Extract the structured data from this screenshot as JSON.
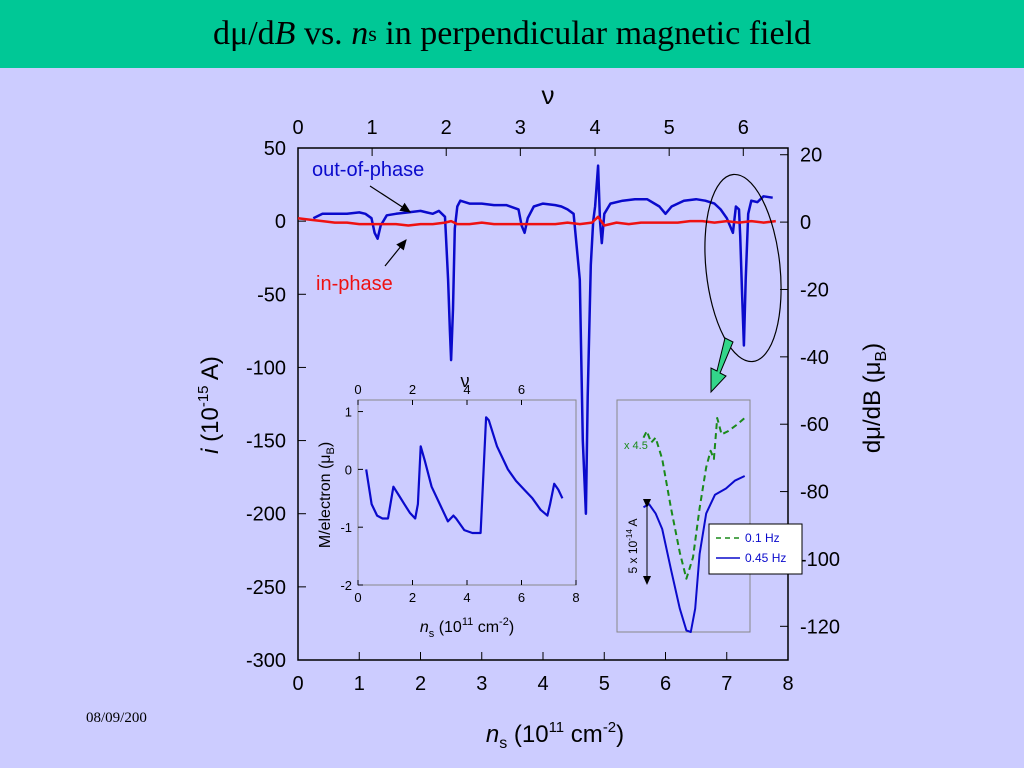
{
  "title": {
    "d1": "d",
    "mu": "μ",
    "slash_d": "/d",
    "B": "B",
    "vs": " vs. ",
    "n": "n",
    "s": "s",
    "rest": " in perpendicular magnetic field"
  },
  "date": "08/09/200",
  "colors": {
    "title_bg": "#00c896",
    "background": "#ccccff",
    "out_of_phase": "#0a0acc",
    "in_phase": "#ee1111",
    "slow": "#1a8a1a",
    "arrow_fill": "#33d68a"
  },
  "chart_data": [
    {
      "type": "line",
      "name": "main",
      "xlabel": {
        "var": "n",
        "sub": "s",
        "pre": " (10",
        "sup": "11",
        "mid": " cm",
        "sup2": "-2",
        "post": ")"
      },
      "ylabel_left": {
        "var": "i",
        "pre": " (10",
        "sup": "-15",
        "post": " A)"
      },
      "ylabel_right": {
        "pre": "dμ/dB (μ",
        "sub": "B",
        "post": ")"
      },
      "top_axis_label": "ν",
      "xlim": [
        0,
        8
      ],
      "ylim": [
        -300,
        50
      ],
      "right_ylim": [
        -130,
        22
      ],
      "x_ticks": [
        "0",
        "1",
        "2",
        "3",
        "4",
        "5",
        "6",
        "7",
        "8"
      ],
      "y_ticks": [
        "50",
        "0",
        "-50",
        "-100",
        "-150",
        "-200",
        "-250",
        "-300"
      ],
      "right_ticks": [
        "20",
        "0",
        "-20",
        "-40",
        "-60",
        "-80",
        "-100",
        "-120"
      ],
      "top_ticks": [
        {
          "label": "0",
          "x": 0.0
        },
        {
          "label": "1",
          "x": 1.21
        },
        {
          "label": "2",
          "x": 2.42
        },
        {
          "label": "3",
          "x": 3.63
        },
        {
          "label": "4",
          "x": 4.85
        },
        {
          "label": "5",
          "x": 6.06
        },
        {
          "label": "6",
          "x": 7.27
        }
      ],
      "series": [
        {
          "name": "out-of-phase",
          "points": [
            [
              0.25,
              2
            ],
            [
              0.4,
              5
            ],
            [
              0.6,
              5
            ],
            [
              0.8,
              5
            ],
            [
              1.0,
              6
            ],
            [
              1.1,
              5
            ],
            [
              1.2,
              2
            ],
            [
              1.25,
              -8
            ],
            [
              1.3,
              -12
            ],
            [
              1.35,
              -3
            ],
            [
              1.45,
              4
            ],
            [
              1.6,
              5
            ],
            [
              1.8,
              6
            ],
            [
              2.0,
              7
            ],
            [
              2.1,
              6
            ],
            [
              2.2,
              5
            ],
            [
              2.3,
              7
            ],
            [
              2.4,
              3
            ],
            [
              2.45,
              -40
            ],
            [
              2.48,
              -75
            ],
            [
              2.5,
              -95
            ],
            [
              2.53,
              -60
            ],
            [
              2.56,
              -5
            ],
            [
              2.6,
              10
            ],
            [
              2.65,
              14
            ],
            [
              2.8,
              12
            ],
            [
              3.0,
              12
            ],
            [
              3.2,
              11
            ],
            [
              3.4,
              11
            ],
            [
              3.6,
              8
            ],
            [
              3.65,
              -3
            ],
            [
              3.7,
              -8
            ],
            [
              3.75,
              2
            ],
            [
              3.85,
              10
            ],
            [
              4.0,
              12
            ],
            [
              4.2,
              11
            ],
            [
              4.3,
              10
            ],
            [
              4.4,
              8
            ],
            [
              4.5,
              5
            ],
            [
              4.6,
              -40
            ],
            [
              4.65,
              -150
            ],
            [
              4.7,
              -200
            ],
            [
              4.73,
              -120
            ],
            [
              4.78,
              -30
            ],
            [
              4.82,
              0
            ],
            [
              4.85,
              10
            ],
            [
              4.9,
              38
            ],
            [
              4.93,
              0
            ],
            [
              4.96,
              -15
            ],
            [
              5.0,
              5
            ],
            [
              5.1,
              12
            ],
            [
              5.3,
              14
            ],
            [
              5.5,
              15
            ],
            [
              5.7,
              15
            ],
            [
              5.9,
              10
            ],
            [
              6.0,
              5
            ],
            [
              6.1,
              10
            ],
            [
              6.3,
              14
            ],
            [
              6.5,
              15
            ],
            [
              6.65,
              14
            ],
            [
              6.8,
              12
            ],
            [
              6.9,
              8
            ],
            [
              7.0,
              2
            ],
            [
              7.1,
              -8
            ],
            [
              7.15,
              10
            ],
            [
              7.2,
              8
            ],
            [
              7.22,
              -10
            ],
            [
              7.25,
              -50
            ],
            [
              7.28,
              -85
            ],
            [
              7.31,
              -40
            ],
            [
              7.35,
              5
            ],
            [
              7.4,
              14
            ],
            [
              7.5,
              13
            ],
            [
              7.6,
              17
            ],
            [
              7.75,
              16
            ]
          ]
        },
        {
          "name": "in-phase",
          "points": [
            [
              0.0,
              2
            ],
            [
              0.2,
              1
            ],
            [
              0.4,
              0
            ],
            [
              0.6,
              -1
            ],
            [
              0.8,
              -1
            ],
            [
              1.0,
              -2
            ],
            [
              1.2,
              -2
            ],
            [
              1.4,
              -2
            ],
            [
              1.6,
              -2
            ],
            [
              1.8,
              -3
            ],
            [
              2.0,
              -2
            ],
            [
              2.2,
              -2
            ],
            [
              2.4,
              -1
            ],
            [
              2.5,
              0
            ],
            [
              2.6,
              -2
            ],
            [
              2.8,
              -2
            ],
            [
              3.0,
              -1
            ],
            [
              3.2,
              -2
            ],
            [
              3.4,
              -2
            ],
            [
              3.6,
              -2
            ],
            [
              3.8,
              -2
            ],
            [
              4.0,
              -2
            ],
            [
              4.2,
              -2
            ],
            [
              4.4,
              -1
            ],
            [
              4.6,
              -2
            ],
            [
              4.8,
              -1
            ],
            [
              4.9,
              3
            ],
            [
              5.0,
              -3
            ],
            [
              5.2,
              -1
            ],
            [
              5.4,
              -2
            ],
            [
              5.6,
              -1
            ],
            [
              5.8,
              -1
            ],
            [
              6.0,
              -1
            ],
            [
              6.2,
              -1
            ],
            [
              6.4,
              0
            ],
            [
              6.6,
              0
            ],
            [
              6.8,
              -1
            ],
            [
              7.0,
              0
            ],
            [
              7.2,
              -1
            ],
            [
              7.4,
              0
            ],
            [
              7.6,
              -1
            ],
            [
              7.8,
              0
            ]
          ]
        }
      ],
      "annotations": [
        {
          "text": "out-of-phase",
          "color": "#0a0acc"
        },
        {
          "text": "in-phase",
          "color": "#ee1111"
        }
      ]
    },
    {
      "type": "line",
      "name": "inset_magnetization",
      "xlabel": {
        "var": "n",
        "sub": "s",
        "pre": " (10",
        "sup": "11",
        "mid": " cm",
        "sup2": "-2",
        "post": ")"
      },
      "ylabel": {
        "pre": "M/electron (μ",
        "sub": "B",
        "post": ")"
      },
      "top_axis_label": "ν",
      "xlim": [
        0,
        8
      ],
      "ylim": [
        -2,
        1.2
      ],
      "x_ticks": [
        "0",
        "2",
        "4",
        "6",
        "8"
      ],
      "y_ticks": [
        "1",
        "0",
        "-1",
        "-2"
      ],
      "top_ticks": [
        "0",
        "2",
        "4",
        "6"
      ],
      "series": [
        {
          "name": "M/electron",
          "points": [
            [
              0.3,
              0
            ],
            [
              0.5,
              -0.6
            ],
            [
              0.7,
              -0.8
            ],
            [
              0.9,
              -0.85
            ],
            [
              1.1,
              -0.85
            ],
            [
              1.3,
              -0.3
            ],
            [
              1.5,
              -0.45
            ],
            [
              1.7,
              -0.6
            ],
            [
              1.9,
              -0.75
            ],
            [
              2.1,
              -0.85
            ],
            [
              2.2,
              -0.6
            ],
            [
              2.3,
              0.4
            ],
            [
              2.45,
              0.15
            ],
            [
              2.7,
              -0.3
            ],
            [
              3.0,
              -0.6
            ],
            [
              3.3,
              -0.9
            ],
            [
              3.5,
              -0.8
            ],
            [
              3.6,
              -0.85
            ],
            [
              3.9,
              -1.05
            ],
            [
              4.2,
              -1.1
            ],
            [
              4.5,
              -1.1
            ],
            [
              4.7,
              0.9
            ],
            [
              4.8,
              0.85
            ],
            [
              5.1,
              0.4
            ],
            [
              5.5,
              0
            ],
            [
              5.8,
              -0.2
            ],
            [
              6.1,
              -0.35
            ],
            [
              6.4,
              -0.5
            ],
            [
              6.7,
              -0.7
            ],
            [
              6.95,
              -0.8
            ],
            [
              7.05,
              -0.6
            ],
            [
              7.2,
              -0.25
            ],
            [
              7.35,
              -0.35
            ],
            [
              7.5,
              -0.5
            ]
          ]
        }
      ]
    },
    {
      "type": "line",
      "name": "inset_frequency",
      "scale_note": "x 4.5",
      "scale_bar": {
        "pre": "5 x 10",
        "sup": "-14",
        "post": " A"
      },
      "series": [
        {
          "name": "0.1 Hz",
          "style": "dashed",
          "points": [
            [
              0.05,
              0.12
            ],
            [
              0.08,
              0.08
            ],
            [
              0.12,
              0.15
            ],
            [
              0.16,
              0.12
            ],
            [
              0.22,
              0.25
            ],
            [
              0.3,
              0.55
            ],
            [
              0.38,
              0.82
            ],
            [
              0.44,
              0.98
            ],
            [
              0.5,
              0.85
            ],
            [
              0.56,
              0.55
            ],
            [
              0.62,
              0.3
            ],
            [
              0.66,
              0.2
            ],
            [
              0.69,
              0.25
            ],
            [
              0.72,
              0.0
            ],
            [
              0.76,
              0.1
            ],
            [
              0.82,
              0.08
            ],
            [
              0.9,
              0.04
            ],
            [
              0.97,
              0.0
            ]
          ]
        },
        {
          "name": "0.45 Hz",
          "style": "solid",
          "points": [
            [
              0.05,
              0.2
            ],
            [
              0.1,
              0.18
            ],
            [
              0.16,
              0.24
            ],
            [
              0.22,
              0.34
            ],
            [
              0.3,
              0.6
            ],
            [
              0.38,
              0.85
            ],
            [
              0.44,
              0.99
            ],
            [
              0.48,
              1.0
            ],
            [
              0.52,
              0.85
            ],
            [
              0.56,
              0.5
            ],
            [
              0.62,
              0.24
            ],
            [
              0.7,
              0.12
            ],
            [
              0.8,
              0.08
            ],
            [
              0.88,
              0.03
            ],
            [
              0.97,
              0.0
            ]
          ]
        }
      ],
      "legend": [
        "0.1 Hz",
        "0.45 Hz"
      ]
    }
  ]
}
